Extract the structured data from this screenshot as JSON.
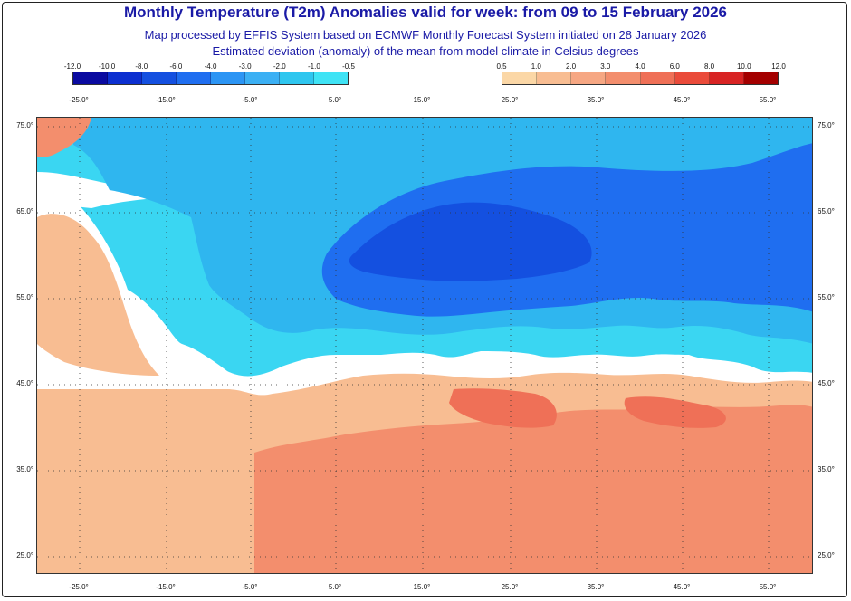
{
  "title": "Monthly Temperature (T2m) Anomalies valid for week: from 09 to 15 February 2026",
  "subtitle_1": "Map processed by EFFIS System based on ECMWF Monthly Forecast System initiated on 28 January 2026",
  "subtitle_2": "Estimated deviation (anomaly) of the mean from model climate in Celsius degrees",
  "colorbar_cold": {
    "ticks": [
      "-12.0",
      "-10.0",
      "-8.0",
      "-6.0",
      "-4.0",
      "-3.0",
      "-2.0",
      "-1.0",
      "-0.5"
    ],
    "colors": [
      "#0a0aa0",
      "#0c2fd0",
      "#1450e0",
      "#1f6ef0",
      "#2c95f4",
      "#3bb0f4",
      "#2ec6ef",
      "#3fe3f5"
    ]
  },
  "colorbar_warm": {
    "ticks": [
      "0.5",
      "1.0",
      "2.0",
      "3.0",
      "4.0",
      "6.0",
      "8.0",
      "10.0",
      "12.0"
    ],
    "colors": [
      "#fbd7a6",
      "#f8bd92",
      "#f6a783",
      "#f38e6d",
      "#ef7057",
      "#ea4b3a",
      "#d82424",
      "#a40000"
    ]
  },
  "longitude_labels": [
    "-25.0°",
    "-15.0°",
    "-5.0°",
    "5.0°",
    "15.0°",
    "25.0°",
    "35.0°",
    "45.0°",
    "55.0°"
  ],
  "latitude_labels": [
    "75.0°",
    "65.0°",
    "55.0°",
    "45.0°",
    "35.0°",
    "25.0°"
  ]
}
